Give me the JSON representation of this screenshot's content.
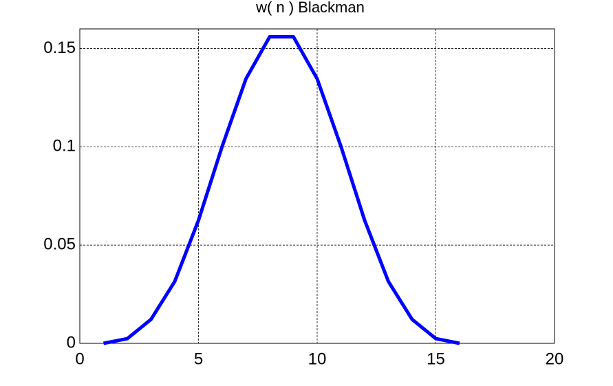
{
  "chart_data": {
    "type": "line",
    "title": "w( n ) Blackman",
    "x": [
      1,
      2,
      3,
      4,
      5,
      6,
      7,
      8,
      9,
      10,
      11,
      12,
      13,
      14,
      15,
      16
    ],
    "series": [
      {
        "color": "#0000ff",
        "values": [
          0,
          0.0024,
          0.0122,
          0.0315,
          0.0626,
          0.1003,
          0.1346,
          0.156,
          0.156,
          0.1346,
          0.1003,
          0.0626,
          0.0315,
          0.0122,
          0.0024,
          0
        ]
      }
    ],
    "xlim": [
      0,
      20
    ],
    "xticks": [
      0,
      5,
      10,
      15,
      20
    ],
    "ylim": [
      0,
      0.16
    ],
    "yticks": [
      0,
      0.05,
      0.1,
      0.15
    ],
    "grid": true
  }
}
